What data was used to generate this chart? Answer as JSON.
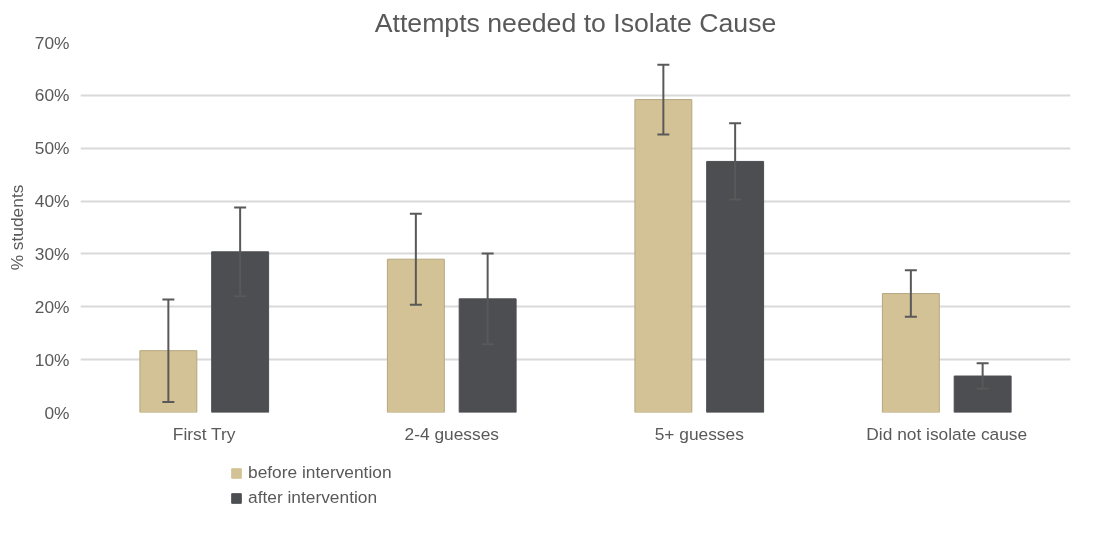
{
  "chart_data": {
    "type": "bar",
    "title": "Attempts needed to Isolate Cause",
    "ylabel": "% students",
    "categories": [
      "First Try",
      "2-4 guesses",
      "5+ guesses",
      "Did not isolate cause"
    ],
    "series": [
      {
        "name": "before intervention",
        "color": "#d3c295",
        "values": [
          11.7,
          29.0,
          59.2,
          22.5
        ],
        "errors": [
          9.7,
          8.6,
          6.6,
          4.4
        ]
      },
      {
        "name": "after intervention",
        "color": "#4d4e52",
        "values": [
          30.4,
          21.5,
          47.5,
          6.9
        ],
        "errors": [
          8.4,
          8.6,
          7.2,
          2.4
        ]
      }
    ],
    "ylim": [
      0,
      70
    ],
    "yticks": [
      {
        "value": 0,
        "label": "0%"
      },
      {
        "value": 10,
        "label": "10%"
      },
      {
        "value": 20,
        "label": "20%"
      },
      {
        "value": 30,
        "label": "30%"
      },
      {
        "value": 40,
        "label": "40%"
      },
      {
        "value": 50,
        "label": "50%"
      },
      {
        "value": 60,
        "label": "60%"
      },
      {
        "value": 70,
        "label": "70%"
      }
    ],
    "grid": "y",
    "legend": "bottom"
  }
}
